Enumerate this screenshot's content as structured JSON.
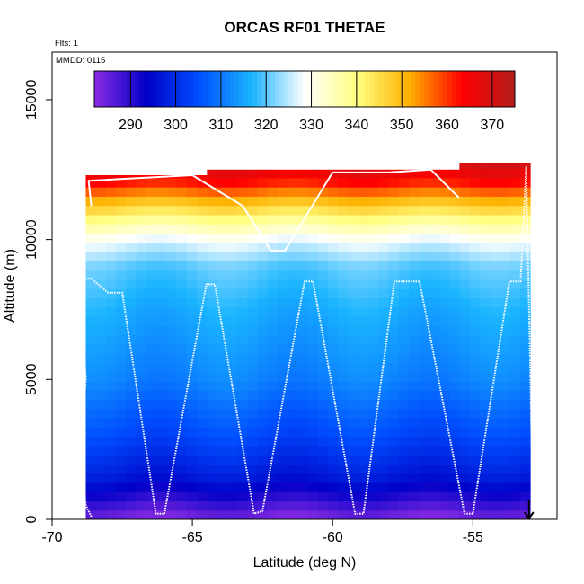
{
  "chart_data": {
    "type": "heatmap",
    "title": "ORCAS RF01 THETAE",
    "annotations": {
      "flights": "Flts: 1",
      "date": "MMDD: 0115"
    },
    "xlabel": "Latitude (deg N)",
    "ylabel": "Altitude (m)",
    "xlim": [
      -70,
      -52
    ],
    "ylim": [
      0,
      16700
    ],
    "x_ticks": [
      -70,
      -65,
      -60,
      -55
    ],
    "x_tick_labels": [
      "-70",
      "-65",
      "-60",
      "-55"
    ],
    "y_ticks": [
      0,
      5000,
      10000,
      15000
    ],
    "y_tick_labels": [
      "0",
      "5000",
      "10000",
      "15000"
    ],
    "colorbar": {
      "range": [
        282,
        375
      ],
      "ticks": [
        290,
        300,
        310,
        320,
        330,
        340,
        350,
        360,
        370
      ],
      "tick_labels": [
        "290",
        "300",
        "310",
        "320",
        "330",
        "340",
        "350",
        "360",
        "370"
      ],
      "colors": [
        "#8a2be2",
        "#0000c8",
        "#0050ff",
        "#1ab4ff",
        "#ffffff",
        "#ffff80",
        "#ffb000",
        "#ff0000",
        "#b41e1e"
      ]
    },
    "field_columns": [
      {
        "lat": -68.8,
        "top": 12300
      },
      {
        "lat": -64.5,
        "top": 12500
      },
      {
        "lat": -56.0,
        "top": 12500
      },
      {
        "lat": -55.5,
        "top": 12750
      },
      {
        "lat": -53.0,
        "top": 12750
      }
    ],
    "field_profile": [
      {
        "alt": 0,
        "theta": 283
      },
      {
        "alt": 700,
        "theta": 290
      },
      {
        "alt": 1500,
        "theta": 297
      },
      {
        "alt": 3000,
        "theta": 304
      },
      {
        "alt": 5000,
        "theta": 311
      },
      {
        "alt": 7500,
        "theta": 316
      },
      {
        "alt": 9000,
        "theta": 320
      },
      {
        "alt": 10000,
        "theta": 328
      },
      {
        "alt": 10800,
        "theta": 340
      },
      {
        "alt": 11500,
        "theta": 352
      },
      {
        "alt": 12100,
        "theta": 363
      },
      {
        "alt": 12700,
        "theta": 370
      }
    ],
    "flight_track": [
      [
        -68.6,
        100
      ],
      [
        -68.8,
        500
      ],
      [
        -69.0,
        2500
      ],
      [
        -68.8,
        5000
      ],
      [
        -69.0,
        8600
      ],
      [
        -68.6,
        8600
      ],
      [
        -68.0,
        8100
      ],
      [
        -67.5,
        8100
      ],
      [
        -66.3,
        200
      ],
      [
        -66.0,
        200
      ],
      [
        -64.5,
        8400
      ],
      [
        -64.2,
        8400
      ],
      [
        -62.8,
        200
      ],
      [
        -62.5,
        300
      ],
      [
        -61.0,
        8500
      ],
      [
        -60.7,
        8500
      ],
      [
        -59.2,
        200
      ],
      [
        -58.9,
        200
      ],
      [
        -57.8,
        8500
      ],
      [
        -56.9,
        8500
      ],
      [
        -55.3,
        200
      ],
      [
        -55.0,
        200
      ],
      [
        -53.7,
        8500
      ],
      [
        -53.3,
        8500
      ],
      [
        -53.1,
        12600
      ],
      [
        -52.9,
        2500
      ],
      [
        -52.9,
        5000
      ]
    ],
    "upper_track": [
      [
        -68.6,
        11200
      ],
      [
        -68.7,
        12100
      ],
      [
        -65.0,
        12300
      ],
      [
        -63.2,
        11200
      ],
      [
        -62.2,
        9600
      ],
      [
        -61.7,
        9600
      ],
      [
        -60.0,
        12400
      ],
      [
        -58.0,
        12400
      ],
      [
        -56.5,
        12500
      ],
      [
        -55.5,
        11500
      ]
    ],
    "arrow_marker": {
      "lat": -53.0,
      "alt_from": 700,
      "alt_to": 0
    }
  }
}
